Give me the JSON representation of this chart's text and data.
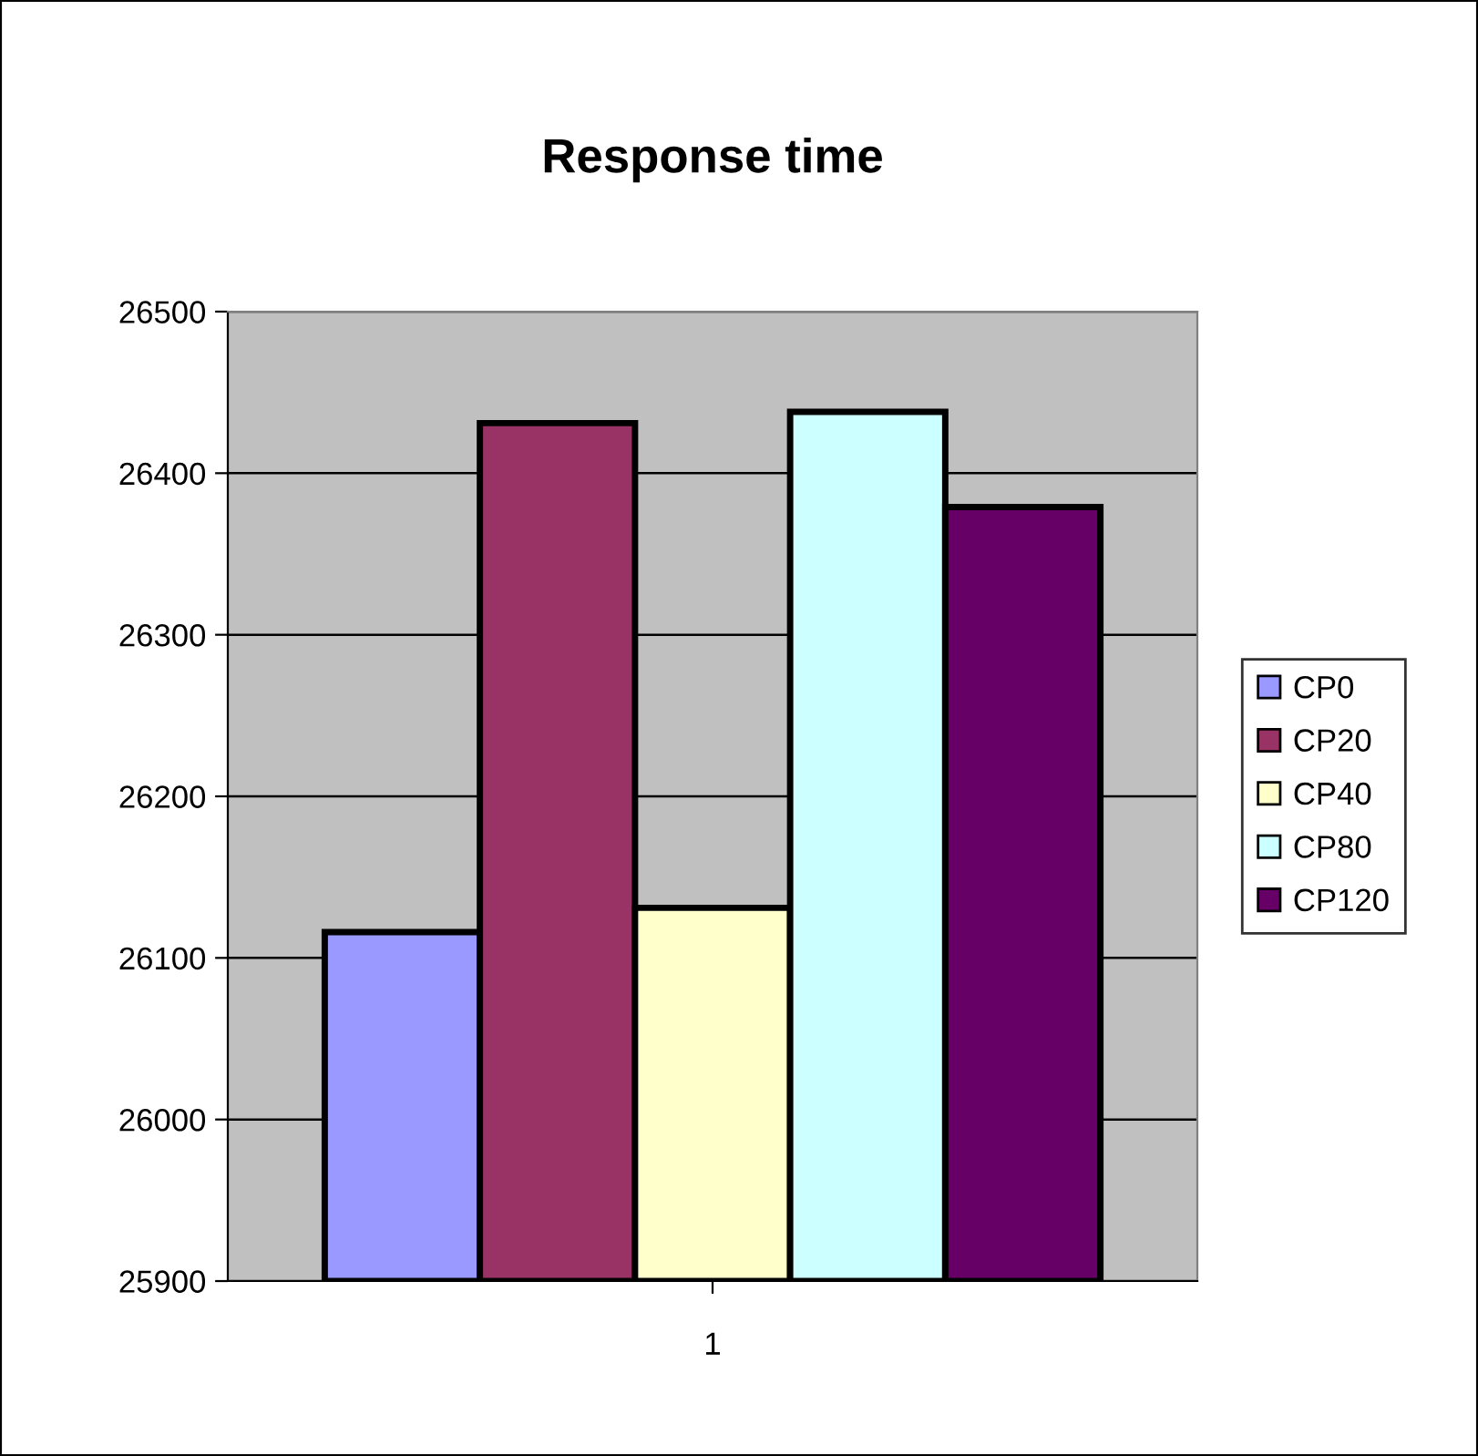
{
  "chart_data": {
    "type": "bar",
    "title": "Response time",
    "categories": [
      "1"
    ],
    "series": [
      {
        "name": "CP0",
        "color": "#9999ff",
        "values": [
          26116
        ]
      },
      {
        "name": "CP20",
        "color": "#993366",
        "values": [
          26431
        ]
      },
      {
        "name": "CP40",
        "color": "#ffffcc",
        "values": [
          26131
        ]
      },
      {
        "name": "CP80",
        "color": "#ccffff",
        "values": [
          26438
        ]
      },
      {
        "name": "CP120",
        "color": "#660066",
        "values": [
          26379
        ]
      }
    ],
    "ylim": [
      25900,
      26500
    ],
    "yticks": [
      25900,
      26000,
      26100,
      26200,
      26300,
      26400,
      26500
    ],
    "grid": "y",
    "legend": "right"
  }
}
